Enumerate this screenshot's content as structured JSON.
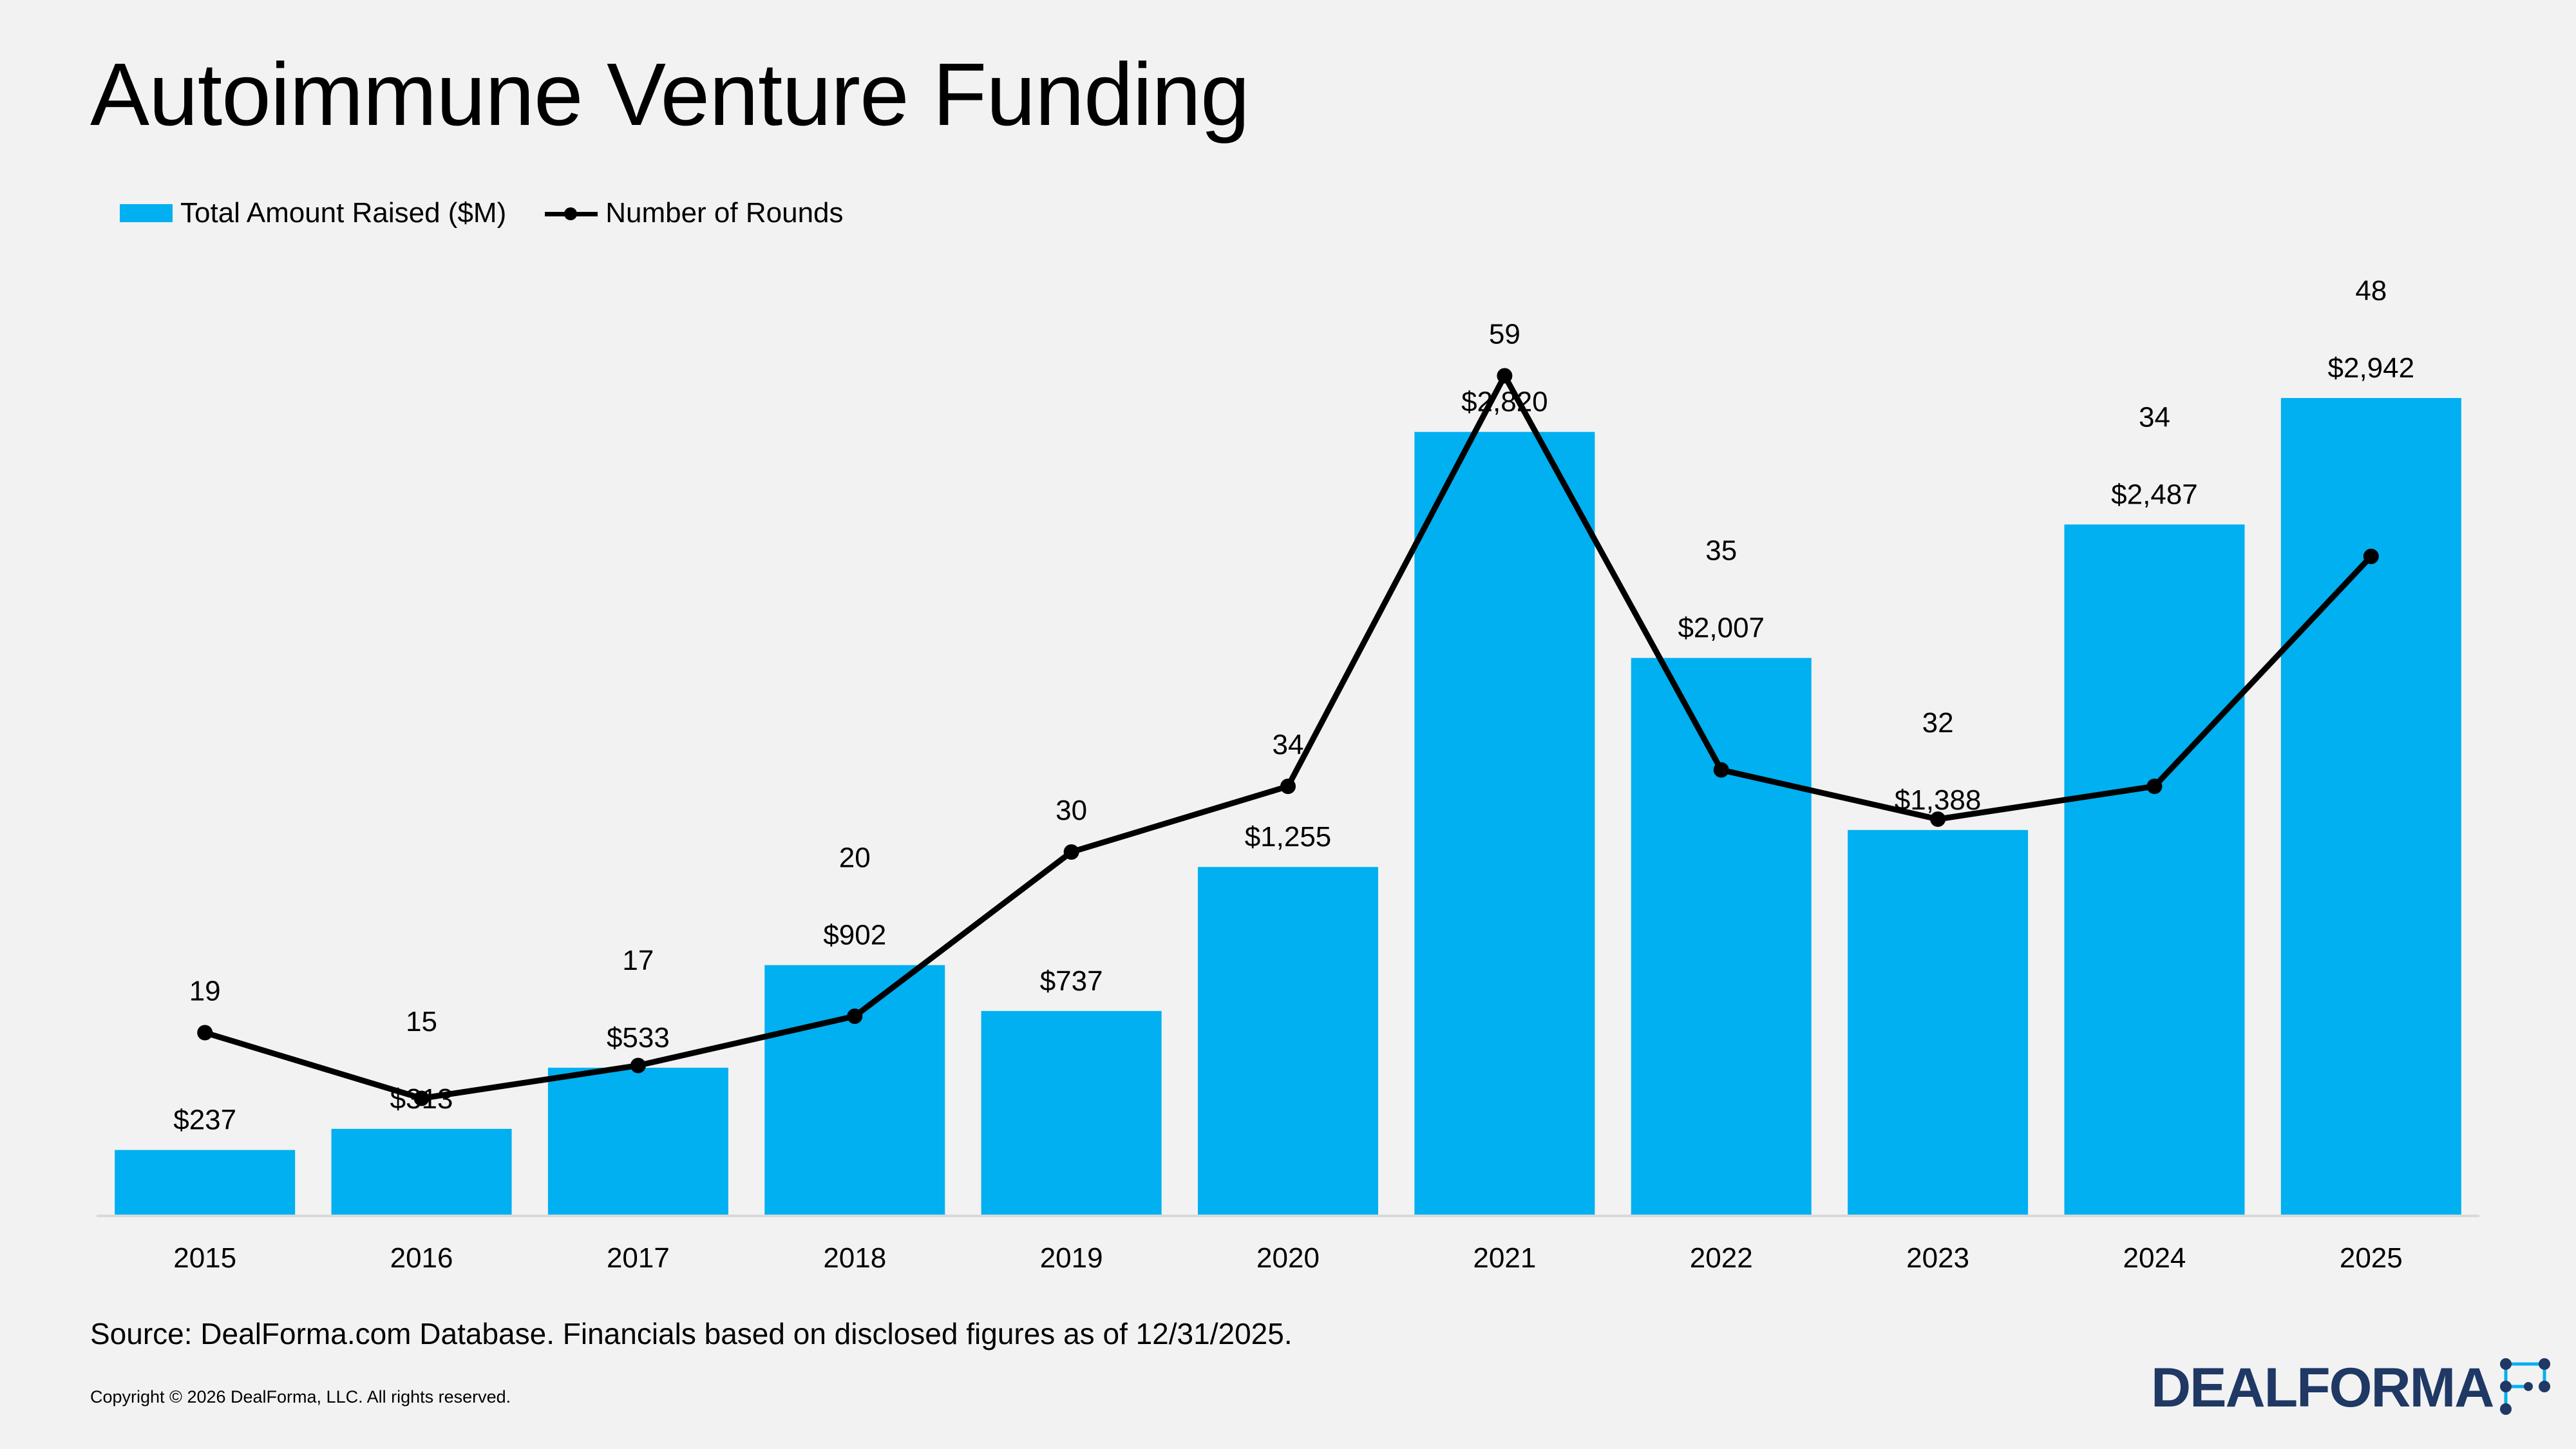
{
  "title": "Autoimmune Venture Funding",
  "legend": {
    "bar_label": "Total Amount Raised ($M)",
    "line_label": "Number of Rounds"
  },
  "colors": {
    "bar": "#00b0f0",
    "line": "#000000",
    "background": "#f2f2f2",
    "logo": "#1f3864"
  },
  "chart_data": {
    "type": "bar",
    "categories": [
      "2015",
      "2016",
      "2017",
      "2018",
      "2019",
      "2020",
      "2021",
      "2022",
      "2023",
      "2024",
      "2025"
    ],
    "series": [
      {
        "name": "Total Amount Raised ($M)",
        "type": "bar",
        "values": [
          237,
          313,
          533,
          902,
          737,
          1255,
          2820,
          2007,
          1388,
          2487,
          2942
        ],
        "labels": [
          "$237",
          "$313",
          "$533",
          "$902",
          "$737",
          "$1,255",
          "$2,820",
          "$2,007",
          "$1,388",
          "$2,487",
          "$2,942"
        ]
      },
      {
        "name": "Number of Rounds",
        "type": "line",
        "values": [
          19,
          15,
          17,
          20,
          30,
          34,
          59,
          35,
          32,
          34,
          48
        ],
        "labels": [
          "19",
          "15",
          "17",
          "20",
          "30",
          "34",
          "59",
          "35",
          "32",
          "34",
          "48"
        ]
      }
    ],
    "legend_position": "top-left",
    "grid": false
  },
  "source": "Source: DealForma.com Database. Financials based on disclosed figures as of 12/31/2025.",
  "copyright": "Copyright © 2026 DealForma, LLC. All rights reserved.",
  "logo": {
    "text": "DEALFORMA",
    "icon": "network-dots-icon"
  }
}
